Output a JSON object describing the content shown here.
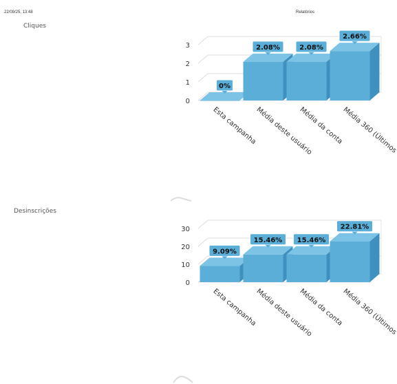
{
  "header": {
    "timestamp": "22/09/25, 13:48",
    "title": "Relatórios"
  },
  "colors": {
    "bar_front": "#5aaed8",
    "bar_side": "#3f8fbf",
    "bar_top": "#7cc3e6",
    "label_bg": "#5aaed8"
  },
  "chart_data": [
    {
      "type": "bar",
      "title": "Cliques",
      "categories": [
        "Esta campanha",
        "Média deste usuário",
        "Média da conta",
        "Média 360 (Últimos"
      ],
      "values": [
        0,
        2.08,
        2.08,
        2.66
      ],
      "data_labels": [
        "0%",
        "2.08%",
        "2.08%",
        "2.66%"
      ],
      "ylim": [
        0,
        3
      ],
      "yticks": [
        0,
        1,
        2,
        3
      ],
      "grid": true,
      "style": "3d"
    },
    {
      "type": "bar",
      "title": "Desinscrições",
      "categories": [
        "Esta campanha",
        "Média deste usuário",
        "Média da conta",
        "Média 360 (Últimos"
      ],
      "values": [
        9.09,
        15.46,
        15.46,
        22.81
      ],
      "data_labels": [
        "9.09%",
        "15.46%",
        "15.46%",
        "22.81%"
      ],
      "ylim": [
        0,
        30
      ],
      "yticks": [
        0,
        10,
        20,
        30
      ],
      "grid": true,
      "style": "3d"
    }
  ]
}
